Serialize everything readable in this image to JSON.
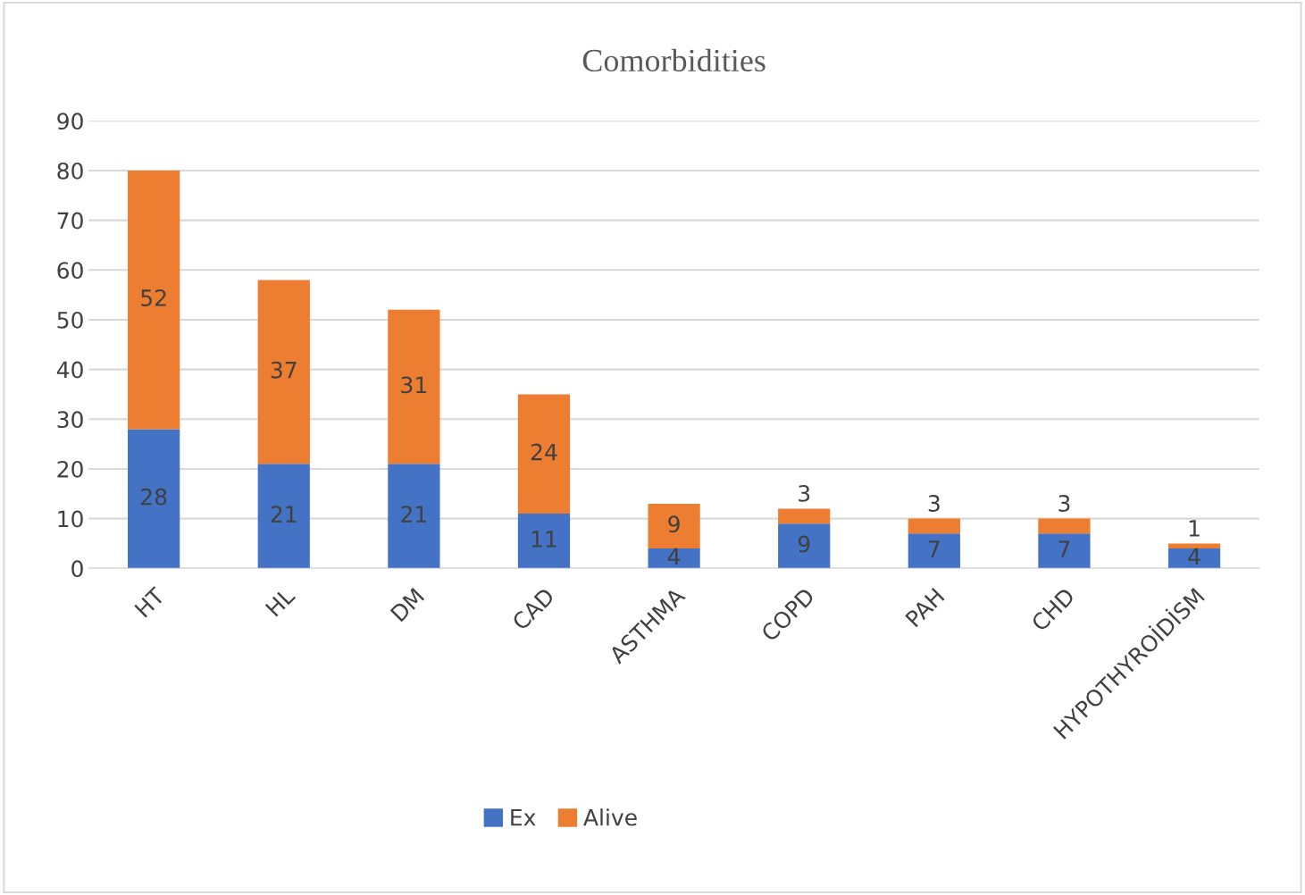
{
  "chart_data": {
    "type": "bar",
    "title": "Comorbidities",
    "stacked": true,
    "categories": [
      "HT",
      "HL",
      "DM",
      "CAD",
      "ASTHMA",
      "COPD",
      "PAH",
      "CHD",
      "HYPOTHYROİDİSM"
    ],
    "series": [
      {
        "name": "Ex",
        "color": "#4472c4",
        "values": [
          28,
          21,
          21,
          11,
          4,
          9,
          7,
          7,
          4
        ]
      },
      {
        "name": "Alive",
        "color": "#ed7d31",
        "values": [
          52,
          37,
          31,
          24,
          9,
          3,
          3,
          3,
          1
        ]
      }
    ],
    "ylim": [
      0,
      90
    ],
    "yticks": [
      0,
      10,
      20,
      30,
      40,
      50,
      60,
      70,
      80,
      90
    ],
    "grid": "y",
    "legend": "bottom",
    "data_labels": true
  }
}
